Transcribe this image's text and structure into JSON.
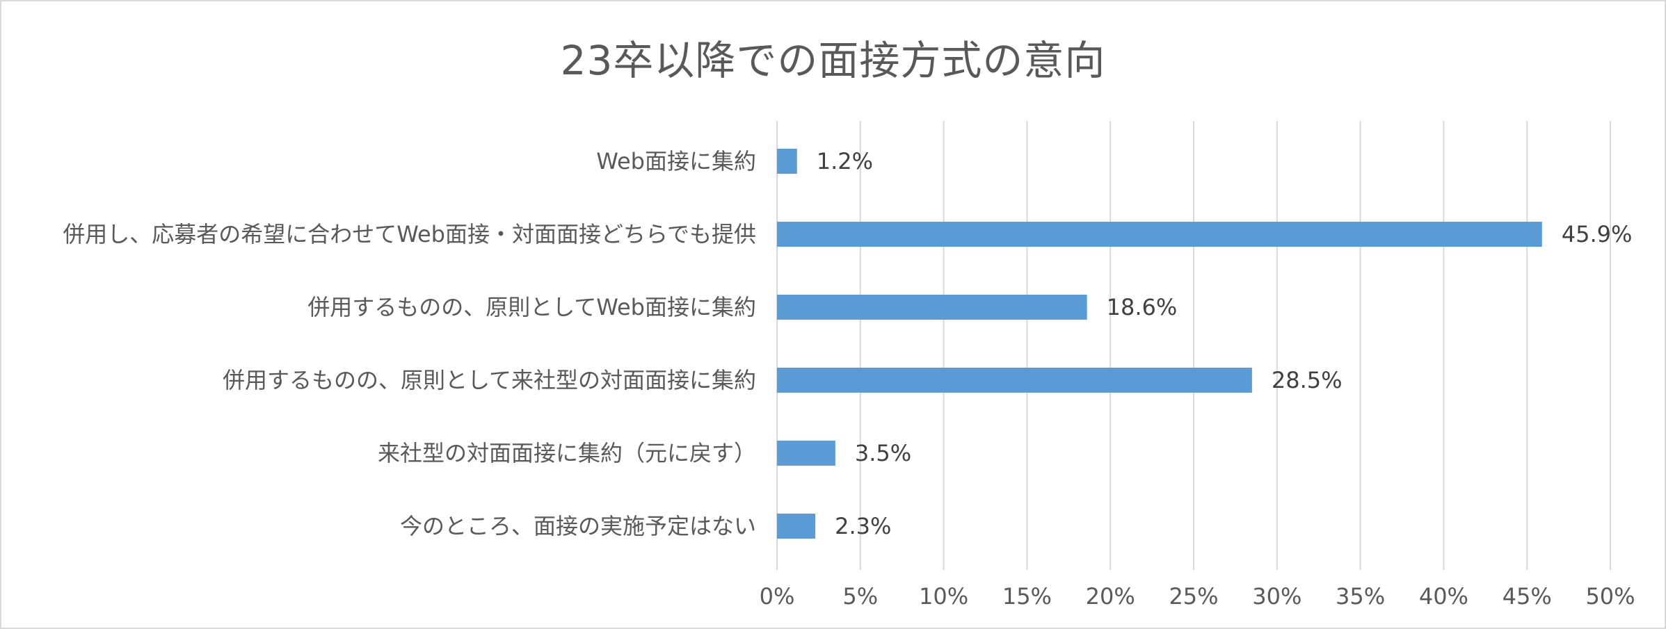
{
  "chart_data": {
    "type": "bar",
    "orientation": "horizontal",
    "title": "23卒以降での面接方式の意向",
    "categories": [
      "Web面接に集約",
      "併用し、応募者の希望に合わせてWeb面接・対面面接どちらでも提供",
      "併用するものの、原則としてWeb面接に集約",
      "併用するものの、原則として来社型の対面面接に集約",
      "来社型の対面面接に集約（元に戻す）",
      "今のところ、面接の実施予定はない"
    ],
    "values": [
      1.2,
      45.9,
      18.6,
      28.5,
      3.5,
      2.3
    ],
    "data_labels": [
      "1.2%",
      "45.9%",
      "18.6%",
      "28.5%",
      "3.5%",
      "2.3%"
    ],
    "xlim": [
      0,
      50
    ],
    "xticks": [
      0,
      5,
      10,
      15,
      20,
      25,
      30,
      35,
      40,
      45,
      50
    ],
    "xtick_labels": [
      "0%",
      "5%",
      "10%",
      "15%",
      "20%",
      "25%",
      "30%",
      "35%",
      "40%",
      "45%",
      "50%"
    ],
    "grid": true,
    "legend": "none",
    "bar_color": "#5b9bd5"
  }
}
